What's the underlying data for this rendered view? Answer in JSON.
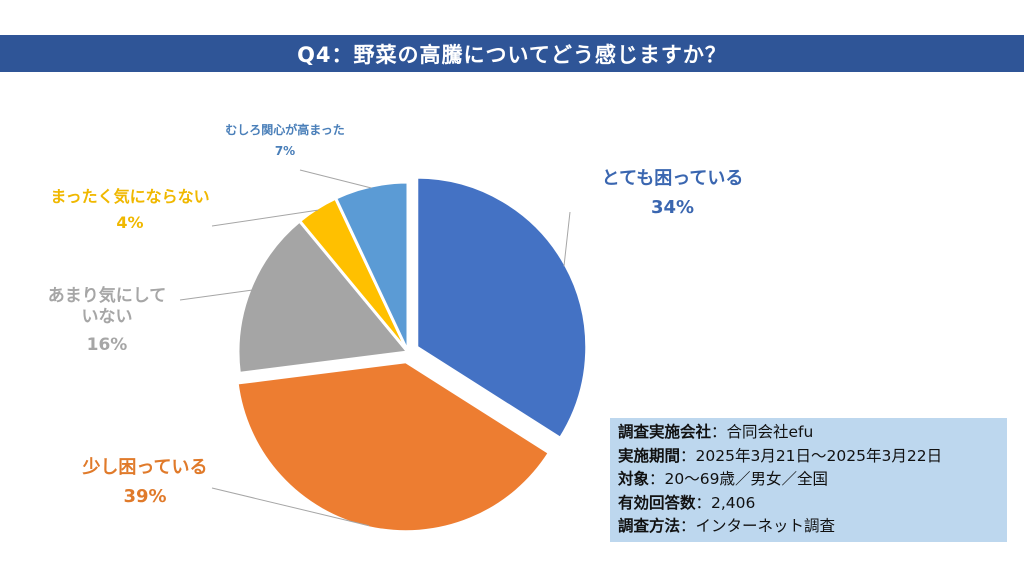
{
  "title": "Q4：野菜の高騰についてどう感じますか？",
  "chart_data": {
    "type": "pie",
    "title": "Q4：野菜の高騰についてどう感じますか？",
    "slices": [
      {
        "label": "とても困っている",
        "value": 34,
        "pct_label": "34%",
        "color": "#4472c4",
        "exploded": true
      },
      {
        "label": "少し困っている",
        "value": 39,
        "pct_label": "39%",
        "color": "#ed7d31",
        "exploded": true
      },
      {
        "label": "あまり気にしていない",
        "label_lines": [
          "あまり気にして",
          "いない"
        ],
        "value": 16,
        "pct_label": "16%",
        "color": "#a5a5a5",
        "exploded": false
      },
      {
        "label": "まったく気にならない",
        "value": 4,
        "pct_label": "4%",
        "color": "#ffc000",
        "exploded": false
      },
      {
        "label": "むしろ関心が高まった",
        "value": 7,
        "pct_label": "7%",
        "color": "#5b9bd5",
        "exploded": false
      }
    ],
    "label_colors": [
      "#3a66b0",
      "#e07a2a",
      "#a6a6a6",
      "#f0b800",
      "#4a7fb9"
    ],
    "start_angle_deg": 0,
    "direction": "clockwise"
  },
  "survey_info": [
    {
      "key": "調査実施会社",
      "value": "：合同会社efu"
    },
    {
      "key": "実施期間",
      "value": "：2025年3月21日～2025年3月22日"
    },
    {
      "key": "対象",
      "value": "：20～69歳／男女／全国"
    },
    {
      "key": "有効回答数",
      "value": "：2,406"
    },
    {
      "key": "調査方法",
      "value": "：インターネット調査"
    }
  ]
}
